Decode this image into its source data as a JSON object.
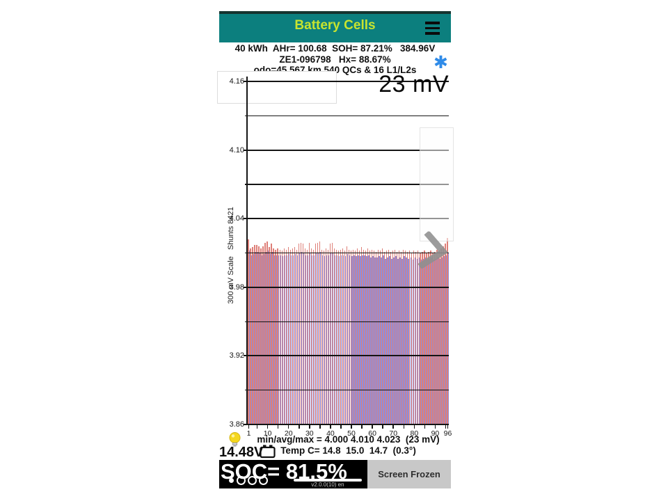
{
  "app": {
    "title": "Battery Cells"
  },
  "stats": {
    "line1": "40 kWh  AHr= 100.68  SOH= 87.21%   384.96V",
    "line2": "ZE1-096798   Hx= 88.67%",
    "line3": "odo=45,567 km 540 QCs & 16 L1/L2s",
    "favorite_marker": "✱"
  },
  "chart_data": {
    "type": "bar",
    "delta_label": "23 mV",
    "ylabel": "300 mV Scale   Shunts 8421",
    "ylim": [
      3.86,
      4.16
    ],
    "num_cells": 96,
    "grid": true,
    "y_axis": {
      "major": [
        4.16,
        4.1,
        4.04,
        3.98,
        3.92,
        3.86
      ],
      "minor": [
        4.13,
        4.07,
        4.01,
        3.95,
        3.89
      ]
    },
    "x_axis": {
      "ticks": [
        1,
        10,
        20,
        30,
        40,
        50,
        60,
        70,
        80,
        90,
        96
      ]
    },
    "series": [
      {
        "name": "cell-max",
        "color": "#de7f78",
        "values": [
          4.022,
          4.014,
          4.015,
          4.017,
          4.017,
          4.016,
          4.014,
          4.016,
          4.019,
          4.02,
          4.015,
          4.018,
          4.014,
          4.013,
          4.014,
          4.013,
          4.012,
          4.014,
          4.013,
          4.015,
          4.013,
          4.014,
          4.015,
          4.013,
          4.018,
          4.019,
          4.018,
          4.014,
          4.013,
          4.019,
          4.014,
          4.013,
          4.018,
          4.019,
          4.02,
          4.013,
          4.012,
          4.014,
          4.013,
          4.018,
          4.019,
          4.014,
          4.013,
          4.012,
          4.013,
          4.014,
          4.012,
          4.016,
          4.013,
          4.012,
          4.013,
          4.012,
          4.014,
          4.012,
          4.015,
          4.013,
          4.012,
          4.014,
          4.012,
          4.013,
          4.012,
          4.011,
          4.013,
          4.012,
          4.014,
          4.011,
          4.012,
          4.013,
          4.011,
          4.012,
          4.013,
          4.011,
          4.012,
          4.011,
          4.013,
          4.012,
          4.011,
          4.012,
          4.01,
          4.012,
          4.011,
          4.012,
          4.01,
          4.011,
          4.012,
          4.01,
          4.011,
          4.012,
          4.01,
          4.011,
          4.013,
          4.012,
          4.014,
          4.016,
          4.018,
          4.023
        ]
      },
      {
        "name": "cell-voltage",
        "color": "#908edb",
        "values": [
          4.012,
          4.008,
          4.009,
          4.011,
          4.011,
          4.01,
          4.008,
          4.009,
          4.011,
          4.012,
          4.009,
          4.011,
          4.008,
          4.008,
          4.008,
          4.008,
          4.007,
          4.008,
          4.008,
          4.009,
          4.008,
          4.008,
          4.009,
          4.008,
          4.01,
          4.011,
          4.01,
          4.008,
          4.008,
          4.01,
          4.008,
          4.008,
          4.01,
          4.01,
          4.011,
          4.008,
          4.007,
          4.008,
          4.008,
          4.01,
          4.01,
          4.008,
          4.008,
          4.007,
          4.008,
          4.008,
          4.007,
          4.009,
          4.008,
          4.007,
          4.008,
          4.007,
          4.008,
          4.007,
          4.008,
          4.008,
          4.007,
          4.008,
          4.006,
          4.007,
          4.006,
          4.006,
          4.007,
          4.006,
          4.008,
          4.005,
          4.006,
          4.007,
          4.005,
          4.006,
          4.007,
          4.005,
          4.006,
          4.005,
          4.007,
          4.006,
          4.005,
          4.006,
          4.004,
          4.006,
          4.005,
          4.006,
          4.004,
          4.005,
          4.006,
          4.004,
          4.005,
          4.006,
          4.004,
          4.005,
          4.006,
          4.005,
          4.006,
          4.007,
          4.008,
          4.01
        ]
      }
    ],
    "annotations": {
      "min_avg_max": "min/avg/max = 4.000 4.010 4.023  (23 mV)",
      "temp": "Temp C= 14.8  15.0  14.7  (0.3°)"
    }
  },
  "footer": {
    "aux_voltage": "14.48V",
    "soc_label": "SOC= 81.5%",
    "screen_frozen_label": "Screen Frozen",
    "version": "v2.0.0(10) en",
    "page_dots": {
      "count": 4,
      "active_index": 0
    }
  }
}
